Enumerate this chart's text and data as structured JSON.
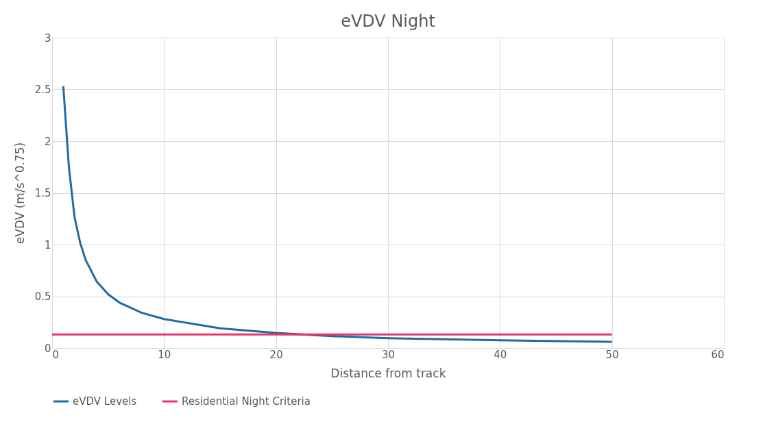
{
  "chart_data": {
    "type": "line",
    "title": "eVDV Night",
    "xlabel": "Distance from track",
    "ylabel": "eVDV (m/s^0.75)",
    "xlim": [
      0,
      60
    ],
    "xticks": [
      0,
      10,
      20,
      30,
      40,
      50,
      60
    ],
    "ylim": [
      0,
      3
    ],
    "yticks": [
      0,
      0.5,
      1,
      1.5,
      2,
      2.5,
      3
    ],
    "grid": true,
    "legend": "bottom",
    "marker": "none",
    "line_style": "solid",
    "series": [
      {
        "name": "eVDV Levels",
        "color": "#1f6aa5",
        "x": [
          1,
          1.5,
          2,
          2.5,
          3,
          4,
          5,
          6,
          8,
          10,
          15,
          20,
          25,
          30,
          40,
          50
        ],
        "values": [
          2.53,
          1.75,
          1.27,
          1.02,
          0.85,
          0.64,
          0.52,
          0.44,
          0.34,
          0.28,
          0.19,
          0.145,
          0.115,
          0.095,
          0.075,
          0.06
        ]
      },
      {
        "name": "Residential Night Criteria",
        "color": "#e8336d",
        "x": [
          0,
          50
        ],
        "values": [
          0.13,
          0.13
        ]
      }
    ]
  }
}
